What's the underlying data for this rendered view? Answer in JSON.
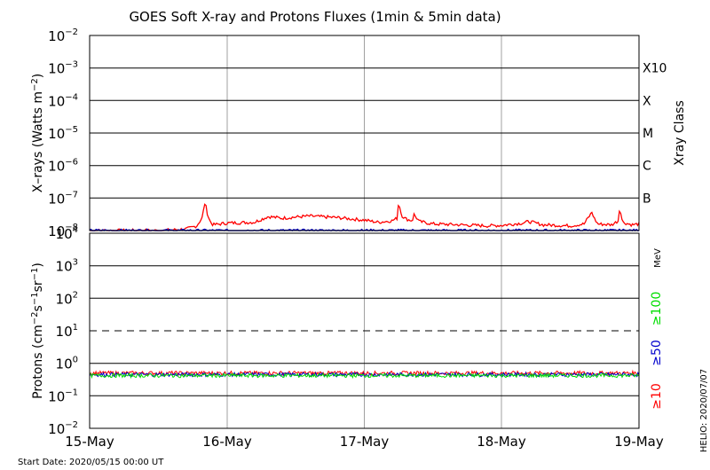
{
  "chart_data": [
    {
      "type": "line",
      "title": "GOES Soft X-ray and Protons Fluxes    (1min & 5min data)",
      "ylabel": "X-rays (Watts m-2)",
      "yscale": "log",
      "ylim_exp": [
        -8,
        -2
      ],
      "ytick_exps": [
        -2,
        -3,
        -4,
        -5,
        -6,
        -7,
        -8
      ],
      "xray_classes": [
        {
          "label": "X10",
          "exp": -3
        },
        {
          "label": "X",
          "exp": -4
        },
        {
          "label": "M",
          "exp": -5
        },
        {
          "label": "C",
          "exp": -6
        },
        {
          "label": "B",
          "exp": -7
        }
      ],
      "right_label": "Xray Class",
      "series": [
        {
          "color": "#ff0000",
          "x": [
            0,
            0.3,
            0.5,
            0.7,
            0.78,
            0.82,
            0.84,
            0.86,
            0.88,
            0.9,
            1.0,
            1.2,
            1.3,
            1.4,
            1.5,
            1.6,
            1.8,
            2.0,
            2.1,
            2.2,
            2.24,
            2.25,
            2.27,
            2.3,
            2.35,
            2.36,
            2.4,
            2.5,
            2.7,
            2.9,
            3.0,
            3.15,
            3.2,
            3.3,
            3.5,
            3.6,
            3.66,
            3.67,
            3.7,
            3.8,
            3.85,
            3.86,
            3.88,
            3.95,
            4.0
          ],
          "y": [
            1e-08,
            1e-08,
            1e-08,
            1.1e-08,
            1.4e-08,
            2.5e-08,
            7.5e-08,
            3e-08,
            1.8e-08,
            1.5e-08,
            1.7e-08,
            1.8e-08,
            2.7e-08,
            2.4e-08,
            2.6e-08,
            2.8e-08,
            2.5e-08,
            2.1e-08,
            1.8e-08,
            2e-08,
            2.4e-08,
            8e-08,
            3e-08,
            2.3e-08,
            2e-08,
            3.2e-08,
            1.9e-08,
            1.6e-08,
            1.5e-08,
            1.4e-08,
            1.45e-08,
            1.7e-08,
            1.9e-08,
            1.5e-08,
            1.4e-08,
            1.6e-08,
            3.8e-08,
            2.5e-08,
            1.6e-08,
            1.5e-08,
            2e-08,
            5.5e-08,
            1.8e-08,
            1.5e-08,
            1.6e-08
          ]
        },
        {
          "color": "#0000c0",
          "x": [
            0,
            1.0,
            2.0,
            3.0,
            4.0
          ],
          "y": [
            1e-08,
            1e-08,
            1e-08,
            1e-08,
            1e-08
          ]
        }
      ]
    },
    {
      "type": "line",
      "ylabel": "Protons (cm-2s-1sr-1)",
      "yscale": "log",
      "ylim_exp": [
        -2,
        4
      ],
      "ytick_exps": [
        4,
        3,
        2,
        1,
        0,
        -1,
        -2
      ],
      "threshold_exp": 1,
      "unit_label": "MeV",
      "series": [
        {
          "name": "≥100",
          "color": "#00dd00",
          "mean": 0.42
        },
        {
          "name": "≥50",
          "color": "#0000cc",
          "mean": 0.45
        },
        {
          "name": "≥10",
          "color": "#ff0000",
          "mean": 0.5
        }
      ]
    }
  ],
  "x_axis": {
    "tick_labels": [
      "15-May",
      "16-May",
      "17-May",
      "18-May",
      "19-May"
    ],
    "range_days": [
      0,
      4
    ]
  },
  "footer": {
    "start_date": "Start Date: 2020/05/15 00:00 UT",
    "credit": "HELIO: 2020/07/07"
  },
  "colors": {
    "frame": "#000000",
    "grid_v": "#a0a0a0",
    "xray_red": "#ff0000",
    "xray_blue": "#0000c0"
  }
}
